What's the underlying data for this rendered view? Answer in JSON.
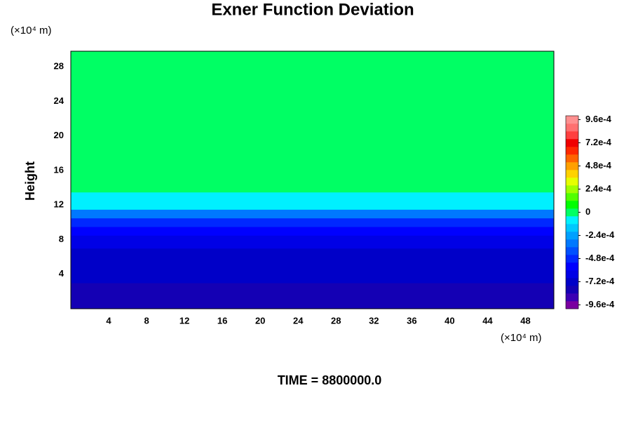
{
  "chart_data": {
    "type": "contour",
    "title": "Exner Function Deviation",
    "y_label": "Height",
    "x_unit": "(×10⁴ m)",
    "y_unit": "(×10⁴ m)",
    "annotation": "TIME = 8800000.0",
    "xlim": [
      0,
      51
    ],
    "ylim": [
      0,
      29.8
    ],
    "xticks": [
      4,
      8,
      12,
      16,
      20,
      24,
      28,
      32,
      36,
      40,
      44,
      48
    ],
    "yticks": [
      4,
      8,
      12,
      16,
      20,
      24,
      28
    ],
    "y": [
      0,
      2,
      4,
      6,
      8,
      9,
      10,
      11,
      12,
      13,
      14,
      16,
      18,
      20,
      30
    ],
    "values": [
      -0.00078,
      -0.00076,
      -0.00074,
      -0.0007,
      -0.00064,
      -0.00055,
      -0.00045,
      -0.0003,
      -0.0001,
      -8e-05,
      -2e-05,
      -5e-06,
      1e-05,
      2e-05,
      2e-05
    ],
    "clim": [
      -0.001,
      0.001
    ],
    "colors": [
      "#7a00a0",
      "#3c00b4",
      "#1400b4",
      "#0000c8",
      "#0000e6",
      "#0000ff",
      "#0028ff",
      "#0050ff",
      "#0078ff",
      "#00a0ff",
      "#00c8ff",
      "#00f0ff",
      "#00ff64",
      "#00ff00",
      "#50ff00",
      "#a0ff00",
      "#e6ff00",
      "#ffd200",
      "#ffa000",
      "#ff6400",
      "#ff2800",
      "#f00000",
      "#ff4040",
      "#ff7070",
      "#ff9090"
    ],
    "cticks": [
      {
        "value": 0.00096,
        "label": "9.6e-4"
      },
      {
        "value": 0.00072,
        "label": "7.2e-4"
      },
      {
        "value": 0.00048,
        "label": "4.8e-4"
      },
      {
        "value": 0.00024,
        "label": "2.4e-4"
      },
      0,
      {
        "value": -0.00024,
        "label": "-2.4e-4"
      },
      {
        "value": -0.00048,
        "label": "-4.8e-4"
      },
      {
        "value": -0.00072,
        "label": "-7.2e-4"
      },
      {
        "value": -0.00096,
        "label": "-9.6e-4"
      }
    ],
    "grid": false
  }
}
